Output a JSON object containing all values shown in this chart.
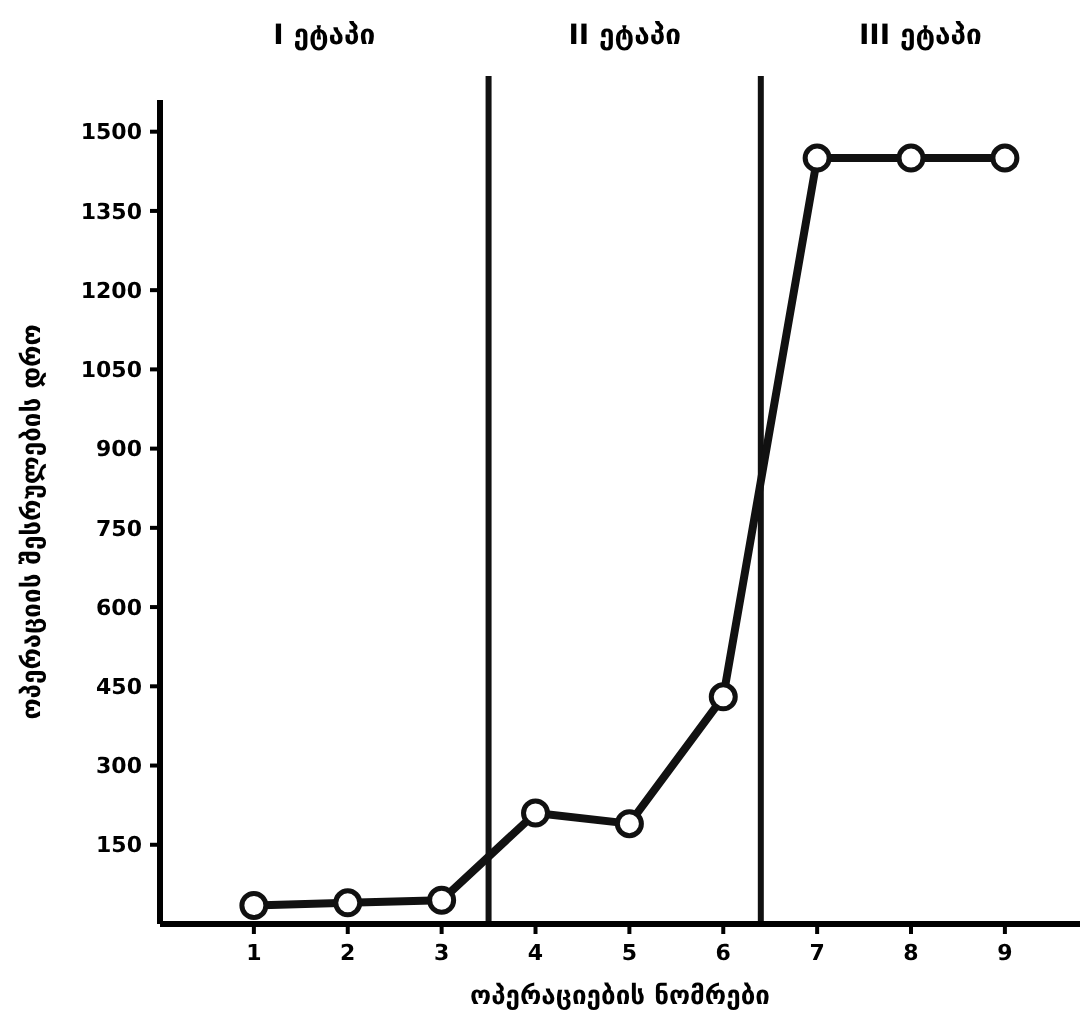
{
  "chart_data": {
    "type": "line",
    "xlabel": "ოპერაციების ნომრები",
    "ylabel": "ოპერაციის შესრულების დრო",
    "x": [
      1,
      2,
      3,
      4,
      5,
      6,
      7,
      8,
      9
    ],
    "series": [
      {
        "color": "#111111",
        "values": [
          35,
          40,
          45,
          210,
          190,
          430,
          1450,
          1450,
          1450
        ]
      }
    ],
    "xlim": [
      0,
      9.8
    ],
    "xticks": [
      1,
      2,
      3,
      4,
      5,
      6,
      7,
      8,
      9
    ],
    "ylim": [
      0,
      1560
    ],
    "yticks": [
      150,
      300,
      450,
      600,
      750,
      900,
      1050,
      1200,
      1350,
      1500
    ],
    "marker": "circle",
    "line_style": "solid",
    "grid": false,
    "ref_lines": [
      {
        "axis": "x",
        "value": 3.5,
        "color": "#111111"
      },
      {
        "axis": "x",
        "value": 6.4,
        "color": "#111111"
      }
    ],
    "annotations": [
      "I ეტაპი",
      "II ეტაპი",
      "III ეტაპი"
    ]
  }
}
